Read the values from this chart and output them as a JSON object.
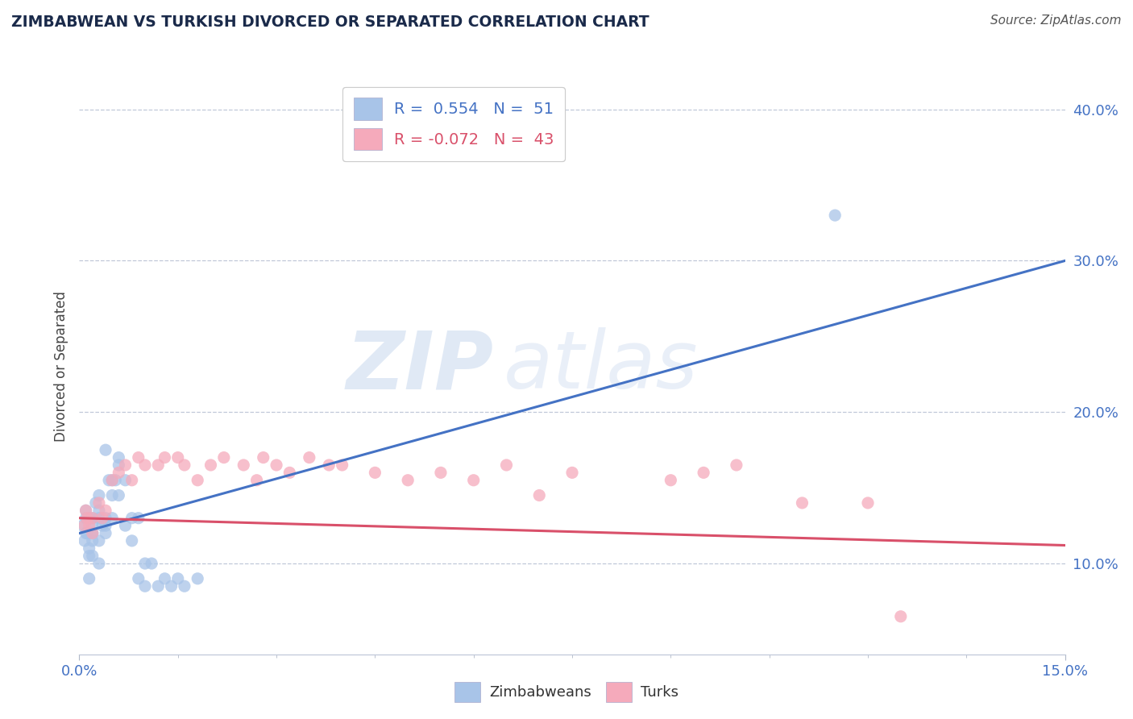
{
  "title": "ZIMBABWEAN VS TURKISH DIVORCED OR SEPARATED CORRELATION CHART",
  "source": "Source: ZipAtlas.com",
  "ylabel": "Divorced or Separated",
  "xlim": [
    0.0,
    0.15
  ],
  "ylim": [
    0.04,
    0.42
  ],
  "yticks": [
    0.1,
    0.2,
    0.3,
    0.4
  ],
  "ytick_labels": [
    "10.0%",
    "20.0%",
    "30.0%",
    "40.0%"
  ],
  "blue_R": 0.554,
  "blue_N": 51,
  "pink_R": -0.072,
  "pink_N": 43,
  "blue_color": "#a8c4e8",
  "pink_color": "#f5aabb",
  "blue_line_color": "#4472c4",
  "pink_line_color": "#d9506a",
  "legend_label_blue": "Zimbabweans",
  "legend_label_pink": "Turks",
  "watermark_text": "ZIP",
  "watermark_text2": "atlas",
  "background_color": "#ffffff",
  "blue_scatter_x": [
    0.0005,
    0.0008,
    0.001,
    0.001,
    0.001,
    0.0012,
    0.0015,
    0.0015,
    0.0015,
    0.0015,
    0.002,
    0.002,
    0.002,
    0.002,
    0.002,
    0.002,
    0.0025,
    0.003,
    0.003,
    0.003,
    0.003,
    0.003,
    0.0035,
    0.004,
    0.004,
    0.004,
    0.004,
    0.0045,
    0.005,
    0.005,
    0.005,
    0.0055,
    0.006,
    0.006,
    0.006,
    0.007,
    0.007,
    0.008,
    0.008,
    0.009,
    0.009,
    0.01,
    0.01,
    0.011,
    0.012,
    0.013,
    0.014,
    0.015,
    0.016,
    0.018,
    0.115
  ],
  "blue_scatter_y": [
    0.125,
    0.115,
    0.135,
    0.12,
    0.13,
    0.12,
    0.105,
    0.11,
    0.09,
    0.13,
    0.115,
    0.12,
    0.105,
    0.13,
    0.12,
    0.125,
    0.14,
    0.13,
    0.145,
    0.135,
    0.1,
    0.115,
    0.125,
    0.175,
    0.12,
    0.13,
    0.125,
    0.155,
    0.155,
    0.145,
    0.13,
    0.155,
    0.145,
    0.17,
    0.165,
    0.155,
    0.125,
    0.13,
    0.115,
    0.13,
    0.09,
    0.085,
    0.1,
    0.1,
    0.085,
    0.09,
    0.085,
    0.09,
    0.085,
    0.09,
    0.33
  ],
  "pink_scatter_x": [
    0.0008,
    0.001,
    0.0012,
    0.0015,
    0.002,
    0.002,
    0.003,
    0.0035,
    0.004,
    0.005,
    0.006,
    0.007,
    0.008,
    0.009,
    0.01,
    0.012,
    0.013,
    0.015,
    0.016,
    0.018,
    0.02,
    0.022,
    0.025,
    0.027,
    0.028,
    0.03,
    0.032,
    0.035,
    0.038,
    0.04,
    0.045,
    0.05,
    0.055,
    0.06,
    0.065,
    0.07,
    0.075,
    0.09,
    0.095,
    0.1,
    0.11,
    0.12,
    0.125
  ],
  "pink_scatter_y": [
    0.125,
    0.135,
    0.13,
    0.125,
    0.13,
    0.12,
    0.14,
    0.13,
    0.135,
    0.155,
    0.16,
    0.165,
    0.155,
    0.17,
    0.165,
    0.165,
    0.17,
    0.17,
    0.165,
    0.155,
    0.165,
    0.17,
    0.165,
    0.155,
    0.17,
    0.165,
    0.16,
    0.17,
    0.165,
    0.165,
    0.16,
    0.155,
    0.16,
    0.155,
    0.165,
    0.145,
    0.16,
    0.155,
    0.16,
    0.165,
    0.14,
    0.14,
    0.065
  ]
}
